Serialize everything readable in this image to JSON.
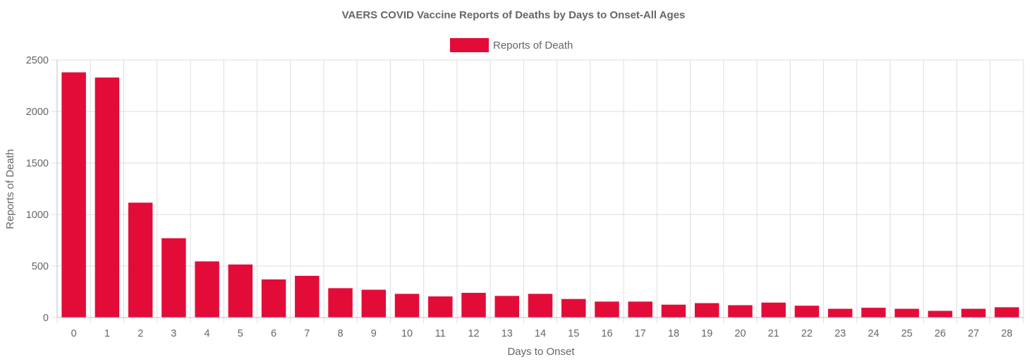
{
  "chart_data": {
    "type": "bar",
    "title": "VAERS COVID Vaccine Reports of Deaths by Days to Onset-All Ages",
    "xlabel": "Days to Onset",
    "ylabel": "Reports of Death",
    "ylim": [
      0,
      2500
    ],
    "yticks": [
      0,
      500,
      1000,
      1500,
      2000,
      2500
    ],
    "grid": true,
    "legend_position": "top-center",
    "categories": [
      "0",
      "1",
      "2",
      "3",
      "4",
      "5",
      "6",
      "7",
      "8",
      "9",
      "10",
      "11",
      "12",
      "13",
      "14",
      "15",
      "16",
      "17",
      "18",
      "19",
      "20",
      "21",
      "22",
      "23",
      "24",
      "25",
      "26",
      "27",
      "28"
    ],
    "series": [
      {
        "name": "Reports of Death",
        "color": "#e30c39",
        "values": [
          2380,
          2330,
          1115,
          770,
          545,
          515,
          370,
          405,
          285,
          270,
          230,
          205,
          240,
          210,
          230,
          180,
          155,
          155,
          125,
          140,
          120,
          145,
          115,
          85,
          95,
          85,
          65,
          85,
          100
        ]
      }
    ]
  }
}
